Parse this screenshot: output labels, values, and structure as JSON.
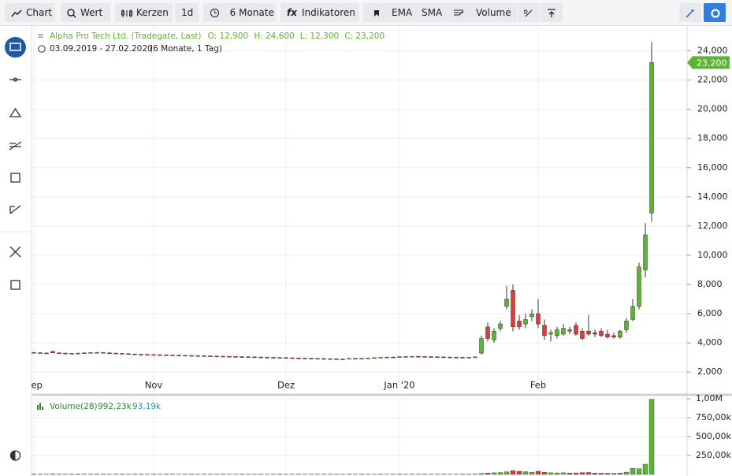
{
  "toolbar": {
    "buttons": [
      "Chart",
      "Wert",
      "Kerzen",
      "1d",
      "6 Monate",
      "Indikatoren",
      "EMA",
      "SMA",
      "Volume"
    ]
  },
  "chart_data": {
    "type": "candlestick",
    "title": "Alpha Pro Tech Ltd. (Tradegate, Last)",
    "legend_values": [
      "O: 12,900",
      "H: 24,600",
      "L: 12,300",
      "C: 23,200"
    ],
    "date_range": "03.09.2019 - 27.02.2020",
    "period": "(6 Monate, 1 Tag)",
    "last_label": "23,200",
    "colors": {
      "up": "#5cb531",
      "down": "#e0393e"
    },
    "grid": true,
    "xlim": [
      -0.375,
      103.625
    ],
    "xticks": [
      {
        "value": 0,
        "label": "Sep"
      },
      {
        "value": 19,
        "label": "Nov"
      },
      {
        "value": 40,
        "label": "Dez"
      },
      {
        "value": 58,
        "label": "Jan '20"
      },
      {
        "value": 80,
        "label": "Feb"
      }
    ],
    "ylim": [
      0.5,
      25.7
    ],
    "yticks": [
      {
        "value": 2,
        "label": "2,000"
      },
      {
        "value": 4,
        "label": "4,000"
      },
      {
        "value": 6,
        "label": "6,000"
      },
      {
        "value": 8,
        "label": "8,000"
      },
      {
        "value": 10,
        "label": "10,000"
      },
      {
        "value": 12,
        "label": "12,000"
      },
      {
        "value": 14,
        "label": "14,000"
      },
      {
        "value": 16,
        "label": "16,000"
      },
      {
        "value": 18,
        "label": "18,000"
      },
      {
        "value": 20,
        "label": "20,000"
      },
      {
        "value": 22,
        "label": "22,000"
      },
      {
        "value": 24,
        "label": "24,000"
      }
    ],
    "ohlc": [
      [
        3.35,
        3.38,
        3.31,
        3.33
      ],
      [
        3.33,
        3.36,
        3.29,
        3.31
      ],
      [
        3.31,
        3.34,
        3.28,
        3.3
      ],
      [
        3.42,
        3.45,
        3.3,
        3.32
      ],
      [
        3.32,
        3.35,
        3.28,
        3.3
      ],
      [
        3.3,
        3.33,
        3.26,
        3.28
      ],
      [
        3.28,
        3.31,
        3.25,
        3.27
      ],
      [
        3.27,
        3.32,
        3.25,
        3.3
      ],
      [
        3.3,
        3.34,
        3.27,
        3.32
      ],
      [
        3.32,
        3.36,
        3.29,
        3.34
      ],
      [
        3.34,
        3.38,
        3.31,
        3.35
      ],
      [
        3.35,
        3.37,
        3.3,
        3.32
      ],
      [
        3.32,
        3.35,
        3.28,
        3.3
      ],
      [
        3.3,
        3.33,
        3.26,
        3.28
      ],
      [
        3.28,
        3.31,
        3.24,
        3.26
      ],
      [
        3.26,
        3.29,
        3.22,
        3.24
      ],
      [
        3.24,
        3.27,
        3.2,
        3.22
      ],
      [
        3.22,
        3.25,
        3.19,
        3.21
      ],
      [
        3.21,
        3.24,
        3.18,
        3.2
      ],
      [
        3.2,
        3.23,
        3.17,
        3.19
      ],
      [
        3.19,
        3.22,
        3.16,
        3.18
      ],
      [
        3.18,
        3.21,
        3.15,
        3.17
      ],
      [
        3.17,
        3.2,
        3.14,
        3.16
      ],
      [
        3.16,
        3.19,
        3.13,
        3.15
      ],
      [
        3.15,
        3.18,
        3.12,
        3.14
      ],
      [
        3.14,
        3.17,
        3.11,
        3.13
      ],
      [
        3.13,
        3.16,
        3.1,
        3.12
      ],
      [
        3.12,
        3.15,
        3.09,
        3.11
      ],
      [
        3.11,
        3.14,
        3.08,
        3.1
      ],
      [
        3.1,
        3.13,
        3.07,
        3.09
      ],
      [
        3.09,
        3.12,
        3.06,
        3.08
      ],
      [
        3.08,
        3.11,
        3.05,
        3.07
      ],
      [
        3.07,
        3.1,
        3.04,
        3.06
      ],
      [
        3.06,
        3.09,
        3.03,
        3.05
      ],
      [
        3.05,
        3.08,
        3.02,
        3.04
      ],
      [
        3.04,
        3.07,
        3.01,
        3.03
      ],
      [
        3.03,
        3.06,
        3.0,
        3.02
      ],
      [
        3.02,
        3.05,
        2.99,
        3.01
      ],
      [
        3.01,
        3.04,
        2.98,
        3.0
      ],
      [
        3.0,
        3.03,
        2.97,
        2.99
      ],
      [
        2.99,
        3.02,
        2.96,
        2.98
      ],
      [
        2.98,
        3.01,
        2.95,
        2.97
      ],
      [
        2.97,
        3.0,
        2.94,
        2.96
      ],
      [
        2.96,
        2.99,
        2.93,
        2.95
      ],
      [
        2.95,
        2.98,
        2.92,
        2.94
      ],
      [
        2.94,
        2.97,
        2.91,
        2.93
      ],
      [
        2.93,
        2.96,
        2.9,
        2.92
      ],
      [
        2.92,
        2.95,
        2.89,
        2.91
      ],
      [
        2.91,
        2.94,
        2.88,
        2.9
      ],
      [
        2.9,
        2.93,
        2.87,
        2.89
      ],
      [
        2.92,
        2.95,
        2.9,
        2.94
      ],
      [
        2.94,
        2.97,
        2.91,
        2.93
      ],
      [
        2.93,
        2.96,
        2.9,
        2.95
      ],
      [
        2.95,
        2.98,
        2.92,
        2.97
      ],
      [
        2.97,
        3.0,
        2.94,
        2.99
      ],
      [
        2.99,
        3.02,
        2.96,
        3.01
      ],
      [
        3.01,
        3.04,
        2.98,
        3.03
      ],
      [
        3.03,
        3.06,
        3.0,
        3.02
      ],
      [
        3.05,
        3.08,
        3.02,
        3.06
      ],
      [
        3.06,
        3.09,
        3.03,
        3.07
      ],
      [
        3.07,
        3.1,
        3.04,
        3.08
      ],
      [
        3.08,
        3.11,
        3.05,
        3.07
      ],
      [
        3.07,
        3.1,
        3.04,
        3.06
      ],
      [
        3.06,
        3.09,
        3.03,
        3.05
      ],
      [
        3.05,
        3.08,
        3.02,
        3.04
      ],
      [
        3.04,
        3.07,
        3.01,
        3.03
      ],
      [
        3.03,
        3.06,
        3.0,
        3.02
      ],
      [
        3.02,
        3.05,
        2.99,
        3.01
      ],
      [
        3.01,
        3.04,
        2.98,
        3.0
      ],
      [
        3.0,
        3.03,
        2.97,
        3.02
      ],
      [
        3.02,
        3.06,
        2.99,
        3.04
      ],
      [
        3.3,
        4.5,
        3.2,
        4.3
      ],
      [
        5.1,
        5.4,
        4.1,
        4.3
      ],
      [
        4.2,
        5.0,
        4.0,
        4.8
      ],
      [
        5.0,
        5.5,
        4.8,
        5.3
      ],
      [
        6.5,
        7.9,
        6.3,
        7.0
      ],
      [
        7.6,
        8.0,
        4.8,
        5.1
      ],
      [
        5.5,
        5.9,
        4.9,
        5.1
      ],
      [
        5.3,
        6.0,
        5.0,
        5.6
      ],
      [
        5.8,
        6.3,
        5.5,
        6.0
      ],
      [
        6.0,
        7.0,
        5.0,
        5.3
      ],
      [
        5.2,
        5.6,
        4.2,
        4.5
      ],
      [
        4.6,
        4.9,
        4.1,
        4.7
      ],
      [
        4.5,
        5.1,
        4.3,
        4.9
      ],
      [
        4.6,
        5.3,
        4.5,
        5.0
      ],
      [
        4.9,
        5.1,
        4.6,
        4.8
      ],
      [
        5.2,
        5.4,
        4.5,
        4.6
      ],
      [
        4.8,
        5.0,
        4.2,
        4.3
      ],
      [
        4.8,
        5.9,
        4.5,
        4.6
      ],
      [
        4.7,
        4.9,
        4.4,
        4.6
      ],
      [
        4.8,
        5.0,
        4.4,
        4.5
      ],
      [
        4.6,
        4.9,
        4.3,
        4.4
      ],
      [
        4.5,
        4.7,
        4.3,
        4.4
      ],
      [
        4.4,
        4.9,
        4.3,
        4.8
      ],
      [
        4.9,
        5.7,
        4.7,
        5.5
      ],
      [
        5.6,
        7.0,
        5.5,
        6.5
      ],
      [
        6.5,
        9.5,
        6.3,
        9.2
      ],
      [
        9.0,
        12.2,
        8.5,
        11.4
      ],
      [
        12.9,
        24.6,
        12.3,
        23.2
      ]
    ],
    "volume": {
      "name": "Volume(28)",
      "last_label": "992,23k",
      "ma_label": "93,19k",
      "ylim": [
        0,
        1000
      ],
      "yticks": [
        {
          "value": 250,
          "label": "250,00k"
        },
        {
          "value": 500,
          "label": "500,00k"
        },
        {
          "value": 750,
          "label": "750,00k"
        },
        {
          "value": 1000,
          "label": "1,00M"
        }
      ],
      "values": [
        5,
        4,
        4,
        6,
        4,
        3,
        4,
        5,
        4,
        4,
        5,
        4,
        3,
        4,
        4,
        3,
        4,
        4,
        3,
        4,
        3,
        4,
        4,
        3,
        3,
        4,
        3,
        4,
        3,
        3,
        4,
        3,
        3,
        4,
        3,
        3,
        4,
        3,
        3,
        4,
        3,
        3,
        4,
        3,
        3,
        3,
        4,
        3,
        3,
        3,
        4,
        3,
        4,
        3,
        3,
        4,
        3,
        3,
        4,
        3,
        4,
        3,
        4,
        3,
        3,
        4,
        3,
        3,
        4,
        4,
        5,
        12,
        18,
        22,
        25,
        35,
        50,
        42,
        36,
        30,
        42,
        28,
        22,
        20,
        22,
        18,
        20,
        24,
        26,
        18,
        16,
        15,
        14,
        18,
        30,
        80,
        75,
        135,
        992.23
      ]
    }
  }
}
